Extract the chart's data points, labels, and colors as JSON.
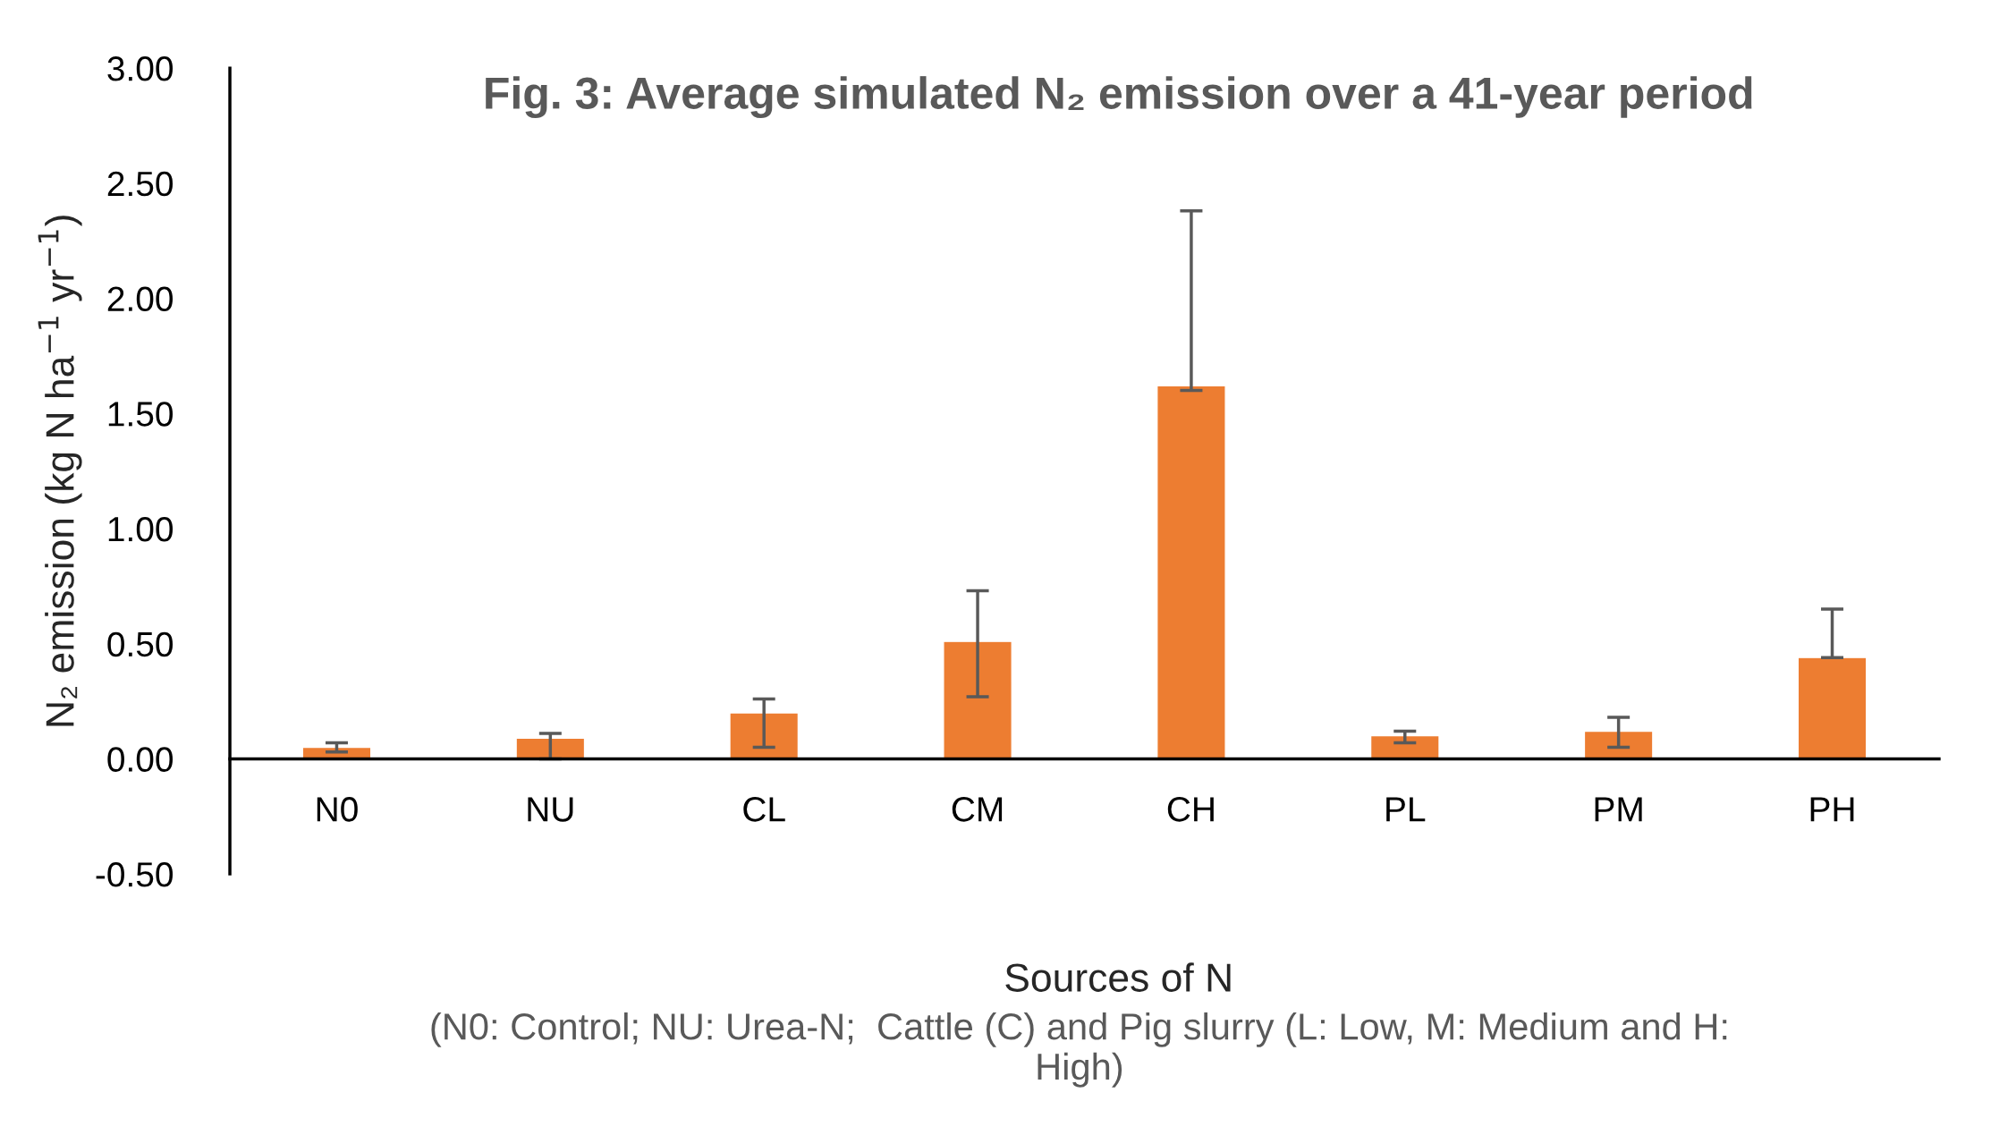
{
  "chart_data": {
    "type": "bar",
    "title": "Fig. 3: Average simulated N₂ emission over a 41-year period",
    "xlabel": "Sources of N",
    "ylabel": "N₂ emission (kg N ha$^{−1}$ yr$^{−1}$)",
    "annotations": [
      "(N0: Control; NU: Urea-N;  Cattle (C) and Pig slurry (L: Low, M: Medium and H: High)"
    ],
    "categories": [
      "N0",
      "NU",
      "CL",
      "CM",
      "CH",
      "PL",
      "PM",
      "PH"
    ],
    "values": [
      0.05,
      0.09,
      0.2,
      0.51,
      1.62,
      0.1,
      0.12,
      0.44
    ],
    "errors": [
      [
        0.03,
        0.07
      ],
      [
        0.0,
        0.11
      ],
      [
        0.05,
        0.26
      ],
      [
        0.27,
        0.73
      ],
      [
        1.6,
        2.38
      ],
      [
        0.07,
        0.12
      ],
      [
        0.05,
        0.18
      ],
      [
        0.44,
        0.65
      ]
    ],
    "color": "#ed7d31",
    "ylim": [
      -0.5,
      3.0
    ],
    "yticks": [
      {
        "value": -0.5,
        "label": "-0.50"
      },
      {
        "value": 0,
        "label": "0.00"
      },
      {
        "value": 0.5,
        "label": "0.50"
      },
      {
        "value": 1.0,
        "label": "1.00"
      },
      {
        "value": 1.5,
        "label": "1.50"
      },
      {
        "value": 2.0,
        "label": "2.00"
      },
      {
        "value": 2.5,
        "label": "2.50"
      },
      {
        "value": 3.0,
        "label": "3.00"
      }
    ],
    "grid": false,
    "legend": false
  }
}
